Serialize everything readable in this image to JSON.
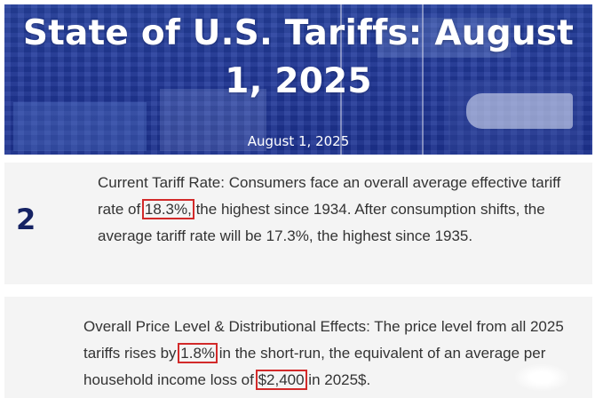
{
  "hero": {
    "title": "State of U.S. Tariffs: August 1, 2025",
    "date": "August 1, 2025"
  },
  "item1": {
    "number": "2",
    "text_a": "Current Tariff Rate: Consumers face an overall average effective tariff rate of ",
    "highlight": "18.3%,",
    "text_b": " the highest since 1934. After consumption shifts, the average tariff rate will be 17.3%, the highest since 1935."
  },
  "item2": {
    "text_a": "Overall Price Level & Distributional Effects: The price level from all 2025 tariffs rises by ",
    "highlight_1": "1.8%",
    "text_b": " in the short-run, the equivalent of an average per household income loss of ",
    "highlight_2": "$2,400",
    "text_c": " in 2025$."
  },
  "colors": {
    "hero_bg": "#22399a",
    "card_bg": "#f4f4f4",
    "number": "#152263",
    "highlight_border": "#d22a2a",
    "body_text": "#333333"
  }
}
